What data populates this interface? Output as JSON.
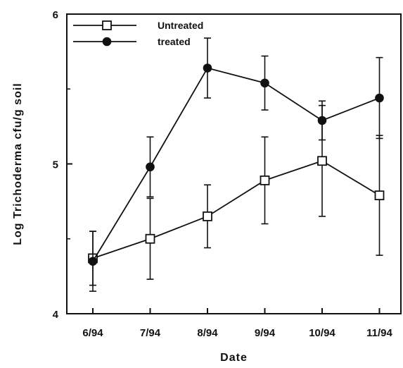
{
  "chart_data": {
    "type": "line",
    "title": "",
    "xlabel": "Date",
    "ylabel": "Log  Trichoderma  cfu/g  soil",
    "categories": [
      "6/94",
      "7/94",
      "8/94",
      "9/94",
      "10/94",
      "11/94"
    ],
    "ylim": [
      4,
      6
    ],
    "yticks": [
      "4",
      "5",
      "6"
    ],
    "grid": false,
    "legend": "top-left",
    "series": [
      {
        "name": "Untreated",
        "marker": "open-square",
        "values": [
          4.37,
          4.5,
          4.65,
          4.89,
          5.02,
          4.79
        ],
        "error": [
          0.18,
          0.27,
          0.21,
          0.29,
          0.37,
          0.4
        ]
      },
      {
        "name": "treated",
        "marker": "filled-circle",
        "values": [
          4.35,
          4.98,
          5.64,
          5.54,
          5.29,
          5.44
        ],
        "error": [
          0.2,
          0.2,
          0.2,
          0.18,
          0.13,
          0.27
        ]
      }
    ]
  }
}
